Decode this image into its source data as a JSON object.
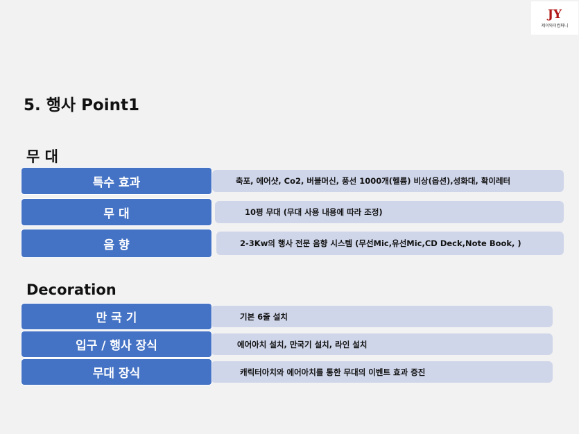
{
  "logo": {
    "mark": "JY",
    "name": "제이와이컴퍼니"
  },
  "title": "5. 행사 Point1",
  "sections": [
    {
      "heading": "무  대",
      "rows": [
        {
          "label": "특수 효과",
          "value": "축포, 에어샷, Co2, 버블머신, 풍선 1000개(헬륨) 비상(옵션),성화대, 확이레터"
        },
        {
          "label": "무 대",
          "value": "10평 무대 (무대 사용 내용에 따라 조정)"
        },
        {
          "label": "음 향",
          "value": "2-3Kw의 행사 전문 음향 시스템 (무선Mic,유선Mic,CD Deck,Note Book, )"
        }
      ]
    },
    {
      "heading": "Decoration",
      "rows": [
        {
          "label": "만 국 기",
          "value": "기본 6줄 설치"
        },
        {
          "label": "입구 / 행사 장식",
          "value": "에어아치 설치, 만국기 설치, 라인 설치"
        },
        {
          "label": "무대 장식",
          "value": "캐릭터아치와 에어아치를 통한 무대의 이벤트 효과 증진"
        }
      ]
    }
  ]
}
